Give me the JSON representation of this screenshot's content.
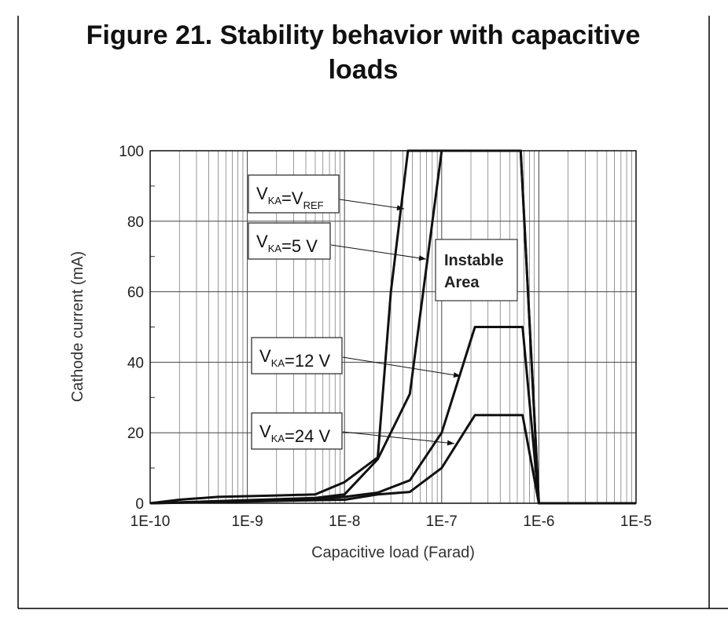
{
  "chart_data": {
    "type": "line",
    "title": "Figure 21. Stability behavior with capacitive loads",
    "title_lines": [
      "Figure 21. Stability behavior with capacitive",
      "loads"
    ],
    "xlabel": "Capacitive load (Farad)",
    "ylabel": "Cathode current (mA)",
    "x_scale": "log",
    "xlim": [
      1e-10,
      1e-05
    ],
    "ylim": [
      0,
      100
    ],
    "x_ticks": [
      "1E-10",
      "1E-9",
      "1E-8",
      "1E-7",
      "1E-6",
      "1E-5"
    ],
    "y_ticks": [
      "0",
      "20",
      "40",
      "60",
      "80",
      "100"
    ],
    "grid": true,
    "instable_area_label": [
      "Instable",
      "Area"
    ],
    "series": [
      {
        "label_main": "V",
        "label_sub": "KA",
        "label_mid": "=V",
        "label_sub2": "REF",
        "label_tail": "",
        "points": [
          [
            1e-10,
            0
          ],
          [
            2e-10,
            1
          ],
          [
            5e-10,
            1.8
          ],
          [
            1e-09,
            2
          ],
          [
            2e-09,
            2.2
          ],
          [
            5e-09,
            2.5
          ],
          [
            1e-08,
            6
          ],
          [
            2.2e-08,
            13
          ],
          [
            3e-08,
            60
          ],
          [
            4.5e-08,
            100
          ],
          [
            6.5e-07,
            100
          ],
          [
            1e-06,
            0
          ],
          [
            1e-05,
            0
          ]
        ]
      },
      {
        "label_main": "V",
        "label_sub": "KA",
        "label_mid": "=5 V",
        "label_sub2": "",
        "label_tail": "",
        "points": [
          [
            1e-10,
            0
          ],
          [
            5e-09,
            1.5
          ],
          [
            1e-08,
            2.5
          ],
          [
            2.2e-08,
            12.5
          ],
          [
            4.7e-08,
            31
          ],
          [
            1e-07,
            100
          ],
          [
            6.5e-07,
            100
          ],
          [
            1e-06,
            0
          ],
          [
            1e-05,
            0
          ]
        ]
      },
      {
        "label_main": "V",
        "label_sub": "KA",
        "label_mid": "=12 V",
        "label_sub2": "",
        "label_tail": "",
        "points": [
          [
            1e-10,
            0
          ],
          [
            5e-09,
            1.2
          ],
          [
            1e-08,
            1.8
          ],
          [
            2.2e-08,
            3
          ],
          [
            4.7e-08,
            6.5
          ],
          [
            1e-07,
            20
          ],
          [
            2.2e-07,
            50
          ],
          [
            6.8e-07,
            50
          ],
          [
            1e-06,
            0
          ],
          [
            1e-05,
            0
          ]
        ]
      },
      {
        "label_main": "V",
        "label_sub": "KA",
        "label_mid": "=24 V",
        "label_sub2": "",
        "label_tail": "",
        "points": [
          [
            1e-10,
            0
          ],
          [
            1e-08,
            1
          ],
          [
            2.2e-08,
            2.5
          ],
          [
            4.7e-08,
            3.2
          ],
          [
            1e-07,
            10
          ],
          [
            2.2e-07,
            25
          ],
          [
            6.8e-07,
            25
          ],
          [
            1e-06,
            0
          ],
          [
            1e-05,
            0
          ]
        ]
      }
    ]
  }
}
